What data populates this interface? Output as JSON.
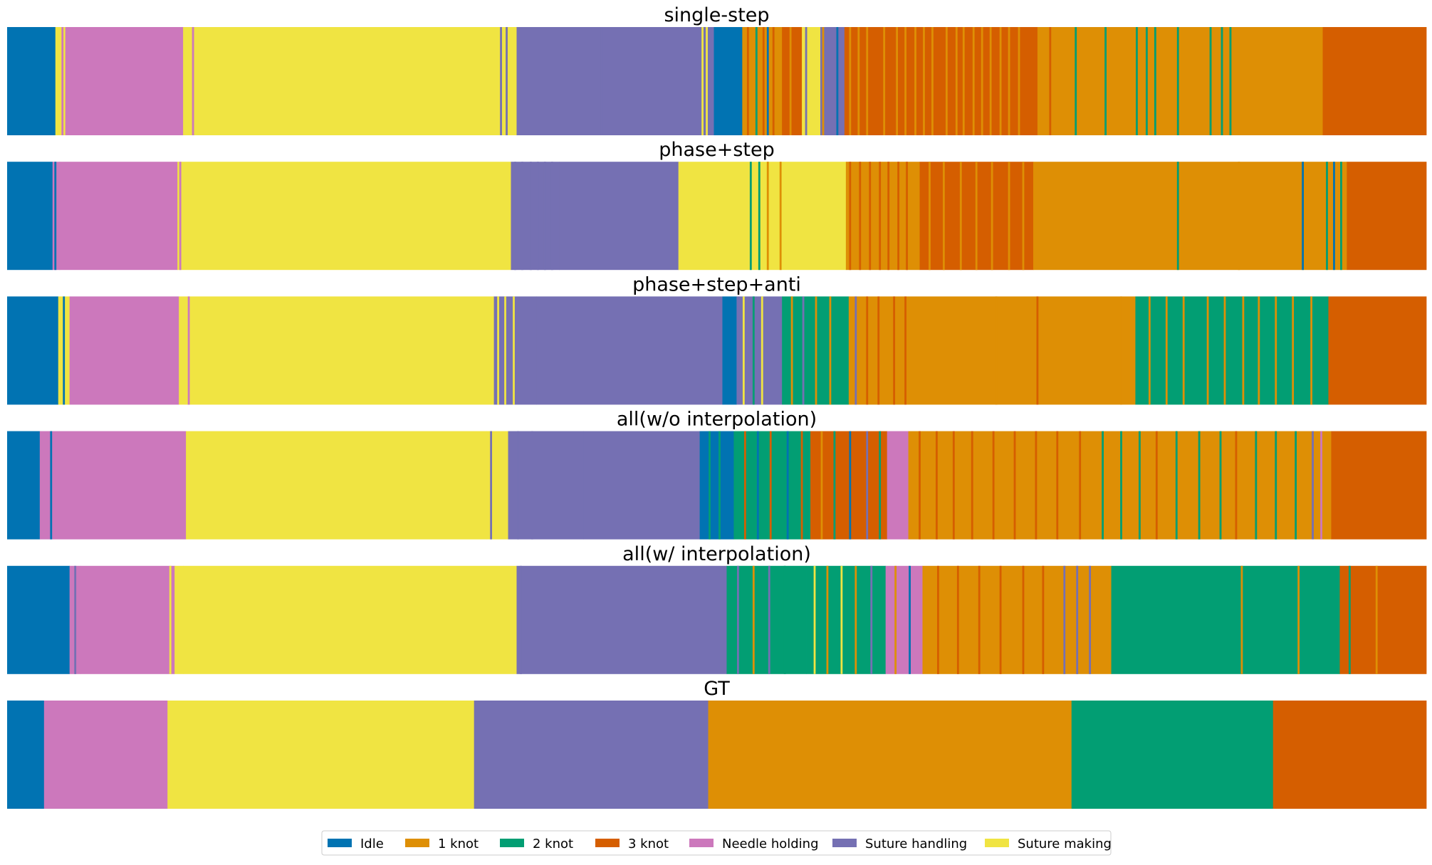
{
  "chart_data": {
    "type": "heatmap",
    "title": "",
    "xlabel": "",
    "ylabel": "",
    "grid": false,
    "legend_position": "bottom-center",
    "x_units": "percent of sequence",
    "classes": [
      {
        "key": "idle",
        "name": "Idle",
        "color": "#0173b2"
      },
      {
        "key": "k1",
        "name": "1 knot",
        "color": "#de8f05"
      },
      {
        "key": "k2",
        "name": "2 knot",
        "color": "#029e73"
      },
      {
        "key": "k3",
        "name": "3 knot",
        "color": "#d55e00"
      },
      {
        "key": "needle",
        "name": "Needle holding",
        "color": "#cc78bc"
      },
      {
        "key": "handling",
        "name": "Suture handling",
        "color": "#7570b3"
      },
      {
        "key": "making",
        "name": "Suture making",
        "color": "#f0e442"
      }
    ],
    "series": [
      {
        "name": "single-step",
        "base_segments": [
          [
            0,
            3.4,
            "idle"
          ],
          [
            3.4,
            4.1,
            "making"
          ],
          [
            4.1,
            12.4,
            "needle"
          ],
          [
            12.4,
            34.5,
            "making"
          ],
          [
            34.5,
            35.9,
            "making"
          ],
          [
            35.9,
            41.5,
            "handling"
          ],
          [
            41.5,
            49.8,
            "handling"
          ],
          [
            49.8,
            51.8,
            "idle"
          ],
          [
            51.8,
            54.6,
            "k1"
          ],
          [
            54.6,
            56.0,
            "k3"
          ],
          [
            56.0,
            57.3,
            "making"
          ],
          [
            57.3,
            59.0,
            "handling"
          ],
          [
            59.0,
            61.3,
            "k3"
          ],
          [
            61.3,
            65.6,
            "k3"
          ],
          [
            65.6,
            72.6,
            "k3"
          ],
          [
            72.6,
            92.7,
            "k1"
          ],
          [
            92.7,
            100,
            "k3"
          ]
        ],
        "stripes": [
          [
            3.9,
            "needle"
          ],
          [
            12.6,
            "making"
          ],
          [
            13.1,
            "needle"
          ],
          [
            34.8,
            "handling"
          ],
          [
            35.2,
            "handling"
          ],
          [
            41.9,
            "handling"
          ],
          [
            49.0,
            "making"
          ],
          [
            49.3,
            "making"
          ],
          [
            52.2,
            "k3"
          ],
          [
            52.8,
            "k2"
          ],
          [
            53.3,
            "k3"
          ],
          [
            53.6,
            "idle"
          ],
          [
            54.0,
            "k3"
          ],
          [
            55.2,
            "k1"
          ],
          [
            56.3,
            "handling"
          ],
          [
            57.5,
            "k1"
          ],
          [
            58.5,
            "idle"
          ],
          [
            59.4,
            "k1"
          ],
          [
            60.0,
            "k1"
          ],
          [
            60.6,
            "k1"
          ],
          [
            61.8,
            "k1"
          ],
          [
            62.7,
            "k1"
          ],
          [
            63.3,
            "k1"
          ],
          [
            64.0,
            "k1"
          ],
          [
            64.6,
            "k1"
          ],
          [
            65.2,
            "k1"
          ],
          [
            66.2,
            "k1"
          ],
          [
            66.9,
            "k1"
          ],
          [
            67.4,
            "k1"
          ],
          [
            68.1,
            "k1"
          ],
          [
            68.7,
            "k1"
          ],
          [
            69.3,
            "k1"
          ],
          [
            70.0,
            "k1"
          ],
          [
            70.6,
            "k1"
          ],
          [
            71.3,
            "k1"
          ],
          [
            73.5,
            "k3"
          ],
          [
            75.3,
            "k2"
          ],
          [
            77.4,
            "k2"
          ],
          [
            79.6,
            "k2"
          ],
          [
            80.3,
            "k2"
          ],
          [
            80.9,
            "k2"
          ],
          [
            82.5,
            "k2"
          ],
          [
            84.8,
            "k2"
          ],
          [
            85.6,
            "k2"
          ],
          [
            86.2,
            "k2"
          ]
        ]
      },
      {
        "name": "phase+step",
        "base_segments": [
          [
            0,
            3.2,
            "idle"
          ],
          [
            3.2,
            3.7,
            "needle"
          ],
          [
            3.7,
            12.0,
            "needle"
          ],
          [
            12.0,
            35.5,
            "making"
          ],
          [
            35.5,
            38.9,
            "handling"
          ],
          [
            38.9,
            47.3,
            "handling"
          ],
          [
            47.3,
            59.1,
            "making"
          ],
          [
            59.1,
            64.3,
            "k1"
          ],
          [
            64.3,
            72.3,
            "k3"
          ],
          [
            72.3,
            94.4,
            "k1"
          ],
          [
            94.4,
            100,
            "k3"
          ]
        ],
        "stripes": [
          [
            3.4,
            "idle"
          ],
          [
            12.2,
            "needle"
          ],
          [
            35.8,
            "handling"
          ],
          [
            36.3,
            "handling"
          ],
          [
            36.9,
            "handling"
          ],
          [
            37.4,
            "handling"
          ],
          [
            37.9,
            "handling"
          ],
          [
            38.4,
            "handling"
          ],
          [
            52.4,
            "k2"
          ],
          [
            53.0,
            "k2"
          ],
          [
            53.6,
            "k1"
          ],
          [
            54.5,
            "k1"
          ],
          [
            59.4,
            "k3"
          ],
          [
            60.1,
            "k3"
          ],
          [
            60.8,
            "k3"
          ],
          [
            61.5,
            "k3"
          ],
          [
            62.1,
            "k3"
          ],
          [
            62.8,
            "k3"
          ],
          [
            63.4,
            "k3"
          ],
          [
            65.0,
            "k1"
          ],
          [
            66.0,
            "k1"
          ],
          [
            67.2,
            "k1"
          ],
          [
            68.3,
            "k1"
          ],
          [
            69.4,
            "k1"
          ],
          [
            70.6,
            "k1"
          ],
          [
            71.6,
            "k1"
          ],
          [
            82.5,
            "k2"
          ],
          [
            86.8,
            "k1"
          ],
          [
            91.3,
            "idle"
          ],
          [
            93.0,
            "k2"
          ],
          [
            93.5,
            "idle"
          ],
          [
            94.0,
            "k2"
          ]
        ]
      },
      {
        "name": "phase+step+anti",
        "base_segments": [
          [
            0,
            3.6,
            "idle"
          ],
          [
            3.6,
            4.4,
            "making"
          ],
          [
            4.4,
            12.1,
            "needle"
          ],
          [
            12.1,
            34.3,
            "making"
          ],
          [
            34.3,
            37.3,
            "handling"
          ],
          [
            37.3,
            50.4,
            "handling"
          ],
          [
            50.4,
            51.4,
            "idle"
          ],
          [
            51.4,
            54.6,
            "handling"
          ],
          [
            54.6,
            59.3,
            "k2"
          ],
          [
            59.3,
            79.5,
            "k1"
          ],
          [
            79.5,
            93.1,
            "k2"
          ],
          [
            93.1,
            100,
            "k3"
          ]
        ],
        "stripes": [
          [
            4.0,
            "idle"
          ],
          [
            12.8,
            "needle"
          ],
          [
            34.6,
            "making"
          ],
          [
            35.1,
            "making"
          ],
          [
            35.7,
            "making"
          ],
          [
            51.9,
            "making"
          ],
          [
            52.6,
            "k2"
          ],
          [
            53.2,
            "making"
          ],
          [
            55.3,
            "k1"
          ],
          [
            56.1,
            "handling"
          ],
          [
            57.0,
            "k1"
          ],
          [
            58.0,
            "k1"
          ],
          [
            59.8,
            "handling"
          ],
          [
            60.6,
            "k3"
          ],
          [
            61.4,
            "k3"
          ],
          [
            62.5,
            "k3"
          ],
          [
            63.3,
            "k3"
          ],
          [
            69.7,
            "k1"
          ],
          [
            72.6,
            "k3"
          ],
          [
            78.5,
            "k1"
          ],
          [
            80.5,
            "k1"
          ],
          [
            81.7,
            "k1"
          ],
          [
            82.9,
            "k1"
          ],
          [
            84.6,
            "k1"
          ],
          [
            85.8,
            "k1"
          ],
          [
            87.1,
            "k1"
          ],
          [
            88.2,
            "k1"
          ],
          [
            89.4,
            "k1"
          ],
          [
            90.6,
            "k1"
          ],
          [
            91.9,
            "k1"
          ]
        ]
      },
      {
        "name": "all(w/o interpolation)",
        "base_segments": [
          [
            0,
            2.3,
            "idle"
          ],
          [
            2.3,
            12.6,
            "needle"
          ],
          [
            12.6,
            33.8,
            "making"
          ],
          [
            33.8,
            35.3,
            "making"
          ],
          [
            35.3,
            40.6,
            "handling"
          ],
          [
            40.6,
            48.8,
            "handling"
          ],
          [
            48.8,
            51.2,
            "idle"
          ],
          [
            51.2,
            56.6,
            "k2"
          ],
          [
            56.6,
            62.0,
            "k3"
          ],
          [
            62.0,
            63.5,
            "needle"
          ],
          [
            63.5,
            93.3,
            "k1"
          ],
          [
            93.3,
            100,
            "k3"
          ]
        ],
        "stripes": [
          [
            3.1,
            "idle"
          ],
          [
            34.1,
            "handling"
          ],
          [
            36.0,
            "handling"
          ],
          [
            37.0,
            "handling"
          ],
          [
            49.5,
            "k2"
          ],
          [
            50.2,
            "k2"
          ],
          [
            52.0,
            "k3"
          ],
          [
            52.9,
            "idle"
          ],
          [
            53.8,
            "k3"
          ],
          [
            55.0,
            "idle"
          ],
          [
            56.0,
            "k3"
          ],
          [
            57.4,
            "k1"
          ],
          [
            58.3,
            "k2"
          ],
          [
            59.4,
            "idle"
          ],
          [
            60.6,
            "handling"
          ],
          [
            61.5,
            "k2"
          ],
          [
            64.3,
            "k3"
          ],
          [
            65.5,
            "k3"
          ],
          [
            66.7,
            "k3"
          ],
          [
            68.0,
            "k3"
          ],
          [
            69.5,
            "k3"
          ],
          [
            71.0,
            "k3"
          ],
          [
            72.5,
            "k3"
          ],
          [
            74.0,
            "k3"
          ],
          [
            75.6,
            "k3"
          ],
          [
            77.2,
            "k2"
          ],
          [
            78.5,
            "k2"
          ],
          [
            79.8,
            "k2"
          ],
          [
            81.0,
            "k3"
          ],
          [
            82.4,
            "k2"
          ],
          [
            84.0,
            "k2"
          ],
          [
            85.5,
            "k2"
          ],
          [
            86.6,
            "k3"
          ],
          [
            88.0,
            "k2"
          ],
          [
            89.4,
            "k2"
          ],
          [
            90.8,
            "k2"
          ],
          [
            92.0,
            "handling"
          ],
          [
            92.6,
            "needle"
          ]
        ]
      },
      {
        "name": "all(w/ interpolation)",
        "base_segments": [
          [
            0,
            4.4,
            "idle"
          ],
          [
            4.4,
            5.2,
            "needle"
          ],
          [
            5.2,
            11.8,
            "needle"
          ],
          [
            11.8,
            12.4,
            "making"
          ],
          [
            12.4,
            35.9,
            "making"
          ],
          [
            35.9,
            50.7,
            "handling"
          ],
          [
            50.7,
            56.3,
            "k2"
          ],
          [
            56.3,
            61.9,
            "k2"
          ],
          [
            61.9,
            64.5,
            "needle"
          ],
          [
            64.5,
            77.8,
            "k1"
          ],
          [
            77.8,
            93.9,
            "k2"
          ],
          [
            93.9,
            100,
            "k3"
          ]
        ],
        "stripes": [
          [
            4.8,
            "handling"
          ],
          [
            11.5,
            "making"
          ],
          [
            36.2,
            "handling"
          ],
          [
            51.5,
            "handling"
          ],
          [
            52.6,
            "k1"
          ],
          [
            53.7,
            "handling"
          ],
          [
            54.8,
            "k2"
          ],
          [
            56.9,
            "making"
          ],
          [
            57.8,
            "k1"
          ],
          [
            58.8,
            "making"
          ],
          [
            59.8,
            "k1"
          ],
          [
            60.9,
            "handling"
          ],
          [
            62.6,
            "k1"
          ],
          [
            63.6,
            "idle"
          ],
          [
            65.6,
            "k3"
          ],
          [
            67.0,
            "k3"
          ],
          [
            68.5,
            "k3"
          ],
          [
            70.0,
            "k3"
          ],
          [
            71.6,
            "k3"
          ],
          [
            73.0,
            "k3"
          ],
          [
            74.5,
            "handling"
          ],
          [
            75.4,
            "handling"
          ],
          [
            76.3,
            "handling"
          ],
          [
            87.0,
            "k1"
          ],
          [
            91.0,
            "k1"
          ],
          [
            94.6,
            "k2"
          ],
          [
            96.5,
            "k1"
          ]
        ]
      },
      {
        "name": "GT",
        "base_segments": [
          [
            0,
            2.6,
            "idle"
          ],
          [
            2.6,
            11.3,
            "needle"
          ],
          [
            11.3,
            32.9,
            "making"
          ],
          [
            32.9,
            49.4,
            "handling"
          ],
          [
            49.4,
            75.0,
            "k1"
          ],
          [
            75.0,
            89.2,
            "k2"
          ],
          [
            89.2,
            100,
            "k3"
          ]
        ],
        "stripes": []
      }
    ]
  }
}
